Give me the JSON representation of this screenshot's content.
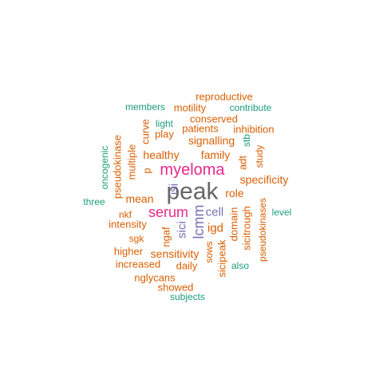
{
  "palette": {
    "orange": "#D95F02",
    "green": "#1B9E77",
    "purple": "#7570B3",
    "magenta": "#E7298A",
    "gray": "#666666"
  },
  "words": [
    {
      "text": "peak",
      "color": "#666666",
      "vertical": false
    },
    {
      "text": "myeloma",
      "color": "#E7298A",
      "vertical": false
    },
    {
      "text": "serum",
      "color": "#E7298A",
      "vertical": false
    },
    {
      "text": "lcmm",
      "color": "#7570B3",
      "vertical": true
    },
    {
      "text": "cell",
      "color": "#7570B3",
      "vertical": false
    },
    {
      "text": "isi",
      "color": "#7570B3",
      "vertical": true
    },
    {
      "text": "sici",
      "color": "#7570B3",
      "vertical": true
    },
    {
      "text": "reproductive",
      "color": "#D95F02",
      "vertical": false
    },
    {
      "text": "members",
      "color": "#1B9E77",
      "vertical": false
    },
    {
      "text": "motility",
      "color": "#D95F02",
      "vertical": false
    },
    {
      "text": "contribute",
      "color": "#1B9E77",
      "vertical": false
    },
    {
      "text": "conserved",
      "color": "#D95F02",
      "vertical": false
    },
    {
      "text": "light",
      "color": "#1B9E77",
      "vertical": false
    },
    {
      "text": "patients",
      "color": "#D95F02",
      "vertical": false
    },
    {
      "text": "inhibition",
      "color": "#D95F02",
      "vertical": false
    },
    {
      "text": "play",
      "color": "#D95F02",
      "vertical": false
    },
    {
      "text": "signalling",
      "color": "#D95F02",
      "vertical": false
    },
    {
      "text": "curve",
      "color": "#D95F02",
      "vertical": true
    },
    {
      "text": "stb",
      "color": "#1B9E77",
      "vertical": true
    },
    {
      "text": "healthy",
      "color": "#D95F02",
      "vertical": false
    },
    {
      "text": "family",
      "color": "#D95F02",
      "vertical": false
    },
    {
      "text": "study",
      "color": "#D95F02",
      "vertical": true
    },
    {
      "text": "adt",
      "color": "#D95F02",
      "vertical": true
    },
    {
      "text": "oncogenic",
      "color": "#1B9E77",
      "vertical": true
    },
    {
      "text": "pseudokinase",
      "color": "#D95F02",
      "vertical": true
    },
    {
      "text": "multiple",
      "color": "#D95F02",
      "vertical": true
    },
    {
      "text": "p",
      "color": "#D95F02",
      "vertical": true
    },
    {
      "text": "specificity",
      "color": "#D95F02",
      "vertical": false
    },
    {
      "text": "role",
      "color": "#D95F02",
      "vertical": false
    },
    {
      "text": "mean",
      "color": "#D95F02",
      "vertical": false
    },
    {
      "text": "three",
      "color": "#1B9E77",
      "vertical": false
    },
    {
      "text": "domain",
      "color": "#D95F02",
      "vertical": true
    },
    {
      "text": "sicitrough",
      "color": "#D95F02",
      "vertical": true
    },
    {
      "text": "pseudokinases",
      "color": "#D95F02",
      "vertical": true
    },
    {
      "text": "level",
      "color": "#1B9E77",
      "vertical": false
    },
    {
      "text": "nkf",
      "color": "#D95F02",
      "vertical": false
    },
    {
      "text": "intensity",
      "color": "#D95F02",
      "vertical": false
    },
    {
      "text": "igd",
      "color": "#D95F02",
      "vertical": false
    },
    {
      "text": "ngaf",
      "color": "#D95F02",
      "vertical": true
    },
    {
      "text": "sgk",
      "color": "#D95F02",
      "vertical": false
    },
    {
      "text": "higher",
      "color": "#D95F02",
      "vertical": false
    },
    {
      "text": "sensitivity",
      "color": "#D95F02",
      "vertical": false
    },
    {
      "text": "sows",
      "color": "#D95F02",
      "vertical": true
    },
    {
      "text": "sicipeak",
      "color": "#D95F02",
      "vertical": true
    },
    {
      "text": "increased",
      "color": "#D95F02",
      "vertical": false
    },
    {
      "text": "daily",
      "color": "#D95F02",
      "vertical": false
    },
    {
      "text": "also",
      "color": "#1B9E77",
      "vertical": false
    },
    {
      "text": "nglycans",
      "color": "#D95F02",
      "vertical": false
    },
    {
      "text": "showed",
      "color": "#D95F02",
      "vertical": false
    },
    {
      "text": "subjects",
      "color": "#1B9E77",
      "vertical": false
    }
  ]
}
